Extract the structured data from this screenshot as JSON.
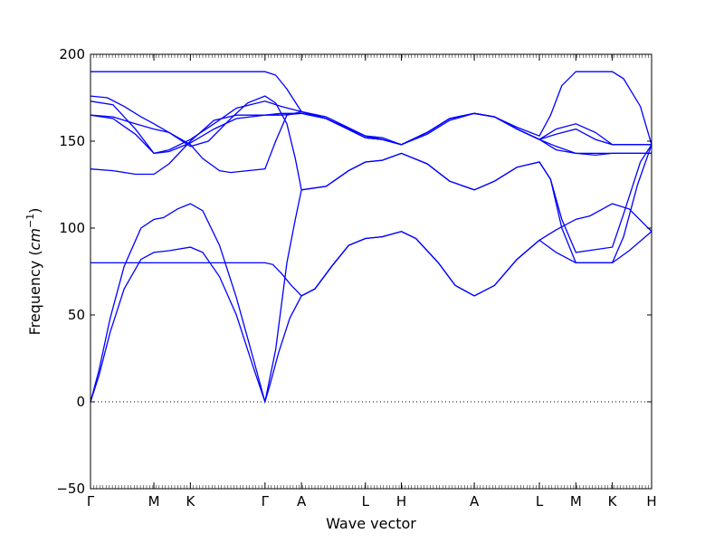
{
  "chart_data": {
    "type": "line",
    "xlabel": "Wave vector",
    "ylabel": "Frequency",
    "ylabel_unit": "cm",
    "ylabel_unit_exp": "−1",
    "ylim": [
      -50,
      200
    ],
    "yticks": [
      -50,
      0,
      50,
      100,
      150,
      200
    ],
    "xlim": [
      0,
      100
    ],
    "zero_line": "dotted",
    "line_color": "#0000ff",
    "kpoints": [
      {
        "label": "Γ",
        "x": 0
      },
      {
        "label": "M",
        "x": 11.3
      },
      {
        "label": "K",
        "x": 17.8
      },
      {
        "label": "Γ",
        "x": 31.1
      },
      {
        "label": "A",
        "x": 37.6
      },
      {
        "label": "L",
        "x": 49.0
      },
      {
        "label": "H",
        "x": 55.4
      },
      {
        "label": "A",
        "x": 68.4
      },
      {
        "label": "L",
        "x": 80.0
      },
      {
        "label": "M",
        "x": 86.5
      },
      {
        "label": "K",
        "x": 93.0
      },
      {
        "label": "H",
        "x": 100
      }
    ],
    "series": [
      {
        "values": [
          [
            0,
            190
          ],
          [
            31.1,
            190
          ],
          [
            33,
            188
          ],
          [
            35,
            180
          ],
          [
            37.6,
            167
          ],
          [
            42,
            163
          ],
          [
            49,
            153
          ],
          [
            52,
            152
          ],
          [
            55.4,
            148
          ],
          [
            60,
            154
          ],
          [
            64,
            162
          ],
          [
            68.4,
            166
          ],
          [
            72,
            164
          ],
          [
            76,
            158
          ],
          [
            80,
            153
          ],
          [
            82,
            165
          ],
          [
            84,
            182
          ],
          [
            86.5,
            190
          ],
          [
            93,
            190
          ],
          [
            95,
            186
          ],
          [
            98,
            170
          ],
          [
            100,
            148
          ]
        ]
      },
      {
        "values": [
          [
            0,
            176
          ],
          [
            3,
            175
          ],
          [
            6,
            170
          ],
          [
            9,
            164
          ],
          [
            11.3,
            160
          ],
          [
            14,
            155
          ],
          [
            17.8,
            147
          ],
          [
            21,
            150
          ],
          [
            25,
            163
          ],
          [
            28,
            172
          ],
          [
            31.1,
            176
          ],
          [
            33,
            172
          ],
          [
            35,
            160
          ],
          [
            36.5,
            140
          ],
          [
            37.6,
            122
          ],
          [
            42,
            124
          ],
          [
            46,
            133
          ],
          [
            49,
            138
          ],
          [
            52,
            139
          ],
          [
            55.4,
            143
          ],
          [
            60,
            137
          ],
          [
            64,
            127
          ],
          [
            68.4,
            122
          ],
          [
            72,
            127
          ],
          [
            76,
            135
          ],
          [
            80,
            138
          ],
          [
            82,
            128
          ],
          [
            84,
            105
          ],
          [
            86.5,
            86
          ],
          [
            93,
            89
          ],
          [
            95,
            108
          ],
          [
            98,
            138
          ],
          [
            100,
            148
          ]
        ]
      },
      {
        "values": [
          [
            0,
            173
          ],
          [
            4,
            171
          ],
          [
            8,
            157
          ],
          [
            11.3,
            143
          ],
          [
            14,
            145
          ],
          [
            17.8,
            151
          ],
          [
            22,
            160
          ],
          [
            26,
            169
          ],
          [
            31.1,
            173
          ],
          [
            34,
            170
          ],
          [
            37.6,
            167
          ],
          [
            42,
            164
          ],
          [
            49,
            153
          ],
          [
            52,
            151
          ],
          [
            55.4,
            148
          ],
          [
            60,
            155
          ],
          [
            64,
            163
          ],
          [
            68.4,
            166
          ],
          [
            72,
            164
          ],
          [
            76,
            157
          ],
          [
            80,
            151
          ],
          [
            83,
            157
          ],
          [
            86.5,
            160
          ],
          [
            90,
            155
          ],
          [
            93,
            148
          ],
          [
            100,
            148
          ]
        ]
      },
      {
        "values": [
          [
            0,
            165
          ],
          [
            4,
            163
          ],
          [
            8,
            154
          ],
          [
            11.3,
            143
          ],
          [
            14,
            144
          ],
          [
            17.8,
            149
          ],
          [
            22,
            157
          ],
          [
            26,
            163
          ],
          [
            31.1,
            165
          ],
          [
            34,
            165
          ],
          [
            37.6,
            166
          ],
          [
            42,
            163
          ],
          [
            49,
            152
          ],
          [
            52,
            151
          ],
          [
            55.4,
            148
          ],
          [
            60,
            155
          ],
          [
            64,
            163
          ],
          [
            68.4,
            166
          ],
          [
            72,
            164
          ],
          [
            76,
            157
          ],
          [
            80,
            151
          ],
          [
            83,
            154
          ],
          [
            86.5,
            157
          ],
          [
            90,
            151
          ],
          [
            93,
            148
          ],
          [
            100,
            148
          ]
        ]
      },
      {
        "values": [
          [
            0,
            165
          ],
          [
            4,
            164
          ],
          [
            8,
            160
          ],
          [
            11.3,
            157
          ],
          [
            14,
            155
          ],
          [
            17.8,
            148
          ],
          [
            20,
            140
          ],
          [
            23,
            133
          ],
          [
            25,
            132
          ],
          [
            28,
            133
          ],
          [
            31.1,
            134
          ],
          [
            33,
            150
          ],
          [
            35,
            165
          ],
          [
            37.6,
            167
          ],
          [
            42,
            163
          ],
          [
            49,
            152
          ],
          [
            52,
            151
          ],
          [
            55.4,
            148
          ],
          [
            60,
            155
          ],
          [
            64,
            163
          ],
          [
            68.4,
            166
          ],
          [
            72,
            164
          ],
          [
            76,
            157
          ],
          [
            80,
            151
          ],
          [
            83,
            145
          ],
          [
            86.5,
            143
          ],
          [
            90,
            142
          ],
          [
            93,
            143
          ],
          [
            100,
            143
          ]
        ]
      },
      {
        "values": [
          [
            0,
            134
          ],
          [
            4,
            133
          ],
          [
            8,
            131
          ],
          [
            11.3,
            131
          ],
          [
            14,
            137
          ],
          [
            17.8,
            150
          ],
          [
            22,
            162
          ],
          [
            26,
            165
          ],
          [
            31.1,
            165
          ],
          [
            34,
            166
          ],
          [
            37.6,
            166
          ],
          [
            42,
            163
          ],
          [
            49,
            152
          ],
          [
            52,
            151
          ],
          [
            55.4,
            148
          ],
          [
            60,
            155
          ],
          [
            64,
            163
          ],
          [
            68.4,
            166
          ],
          [
            72,
            164
          ],
          [
            76,
            157
          ],
          [
            80,
            151
          ],
          [
            83,
            147
          ],
          [
            86.5,
            143
          ],
          [
            93,
            143
          ],
          [
            100,
            143
          ]
        ]
      },
      {
        "values": [
          [
            0,
            0
          ],
          [
            1.5,
            18
          ],
          [
            3.5,
            48
          ],
          [
            6,
            78
          ],
          [
            9,
            100
          ],
          [
            11.3,
            105
          ],
          [
            13,
            106
          ],
          [
            15.5,
            111
          ],
          [
            17.8,
            114
          ],
          [
            20,
            110
          ],
          [
            23,
            90
          ],
          [
            26,
            60
          ],
          [
            29,
            25
          ],
          [
            31.1,
            0
          ],
          [
            33,
            30
          ],
          [
            35,
            80
          ],
          [
            36.5,
            105
          ],
          [
            37.6,
            122
          ],
          [
            42,
            124
          ],
          [
            46,
            133
          ],
          [
            49,
            138
          ],
          [
            52,
            139
          ],
          [
            55.4,
            143
          ],
          [
            60,
            137
          ],
          [
            64,
            127
          ],
          [
            68.4,
            122
          ],
          [
            72,
            127
          ],
          [
            76,
            135
          ],
          [
            80,
            138
          ],
          [
            82,
            128
          ],
          [
            84,
            100
          ],
          [
            86.5,
            80
          ],
          [
            93,
            80
          ],
          [
            95,
            95
          ],
          [
            97.5,
            125
          ],
          [
            100,
            148
          ]
        ]
      },
      {
        "values": [
          [
            0,
            0
          ],
          [
            1.5,
            15
          ],
          [
            3.5,
            40
          ],
          [
            6,
            65
          ],
          [
            9,
            82
          ],
          [
            11.3,
            86
          ],
          [
            14,
            87
          ],
          [
            17.8,
            89
          ],
          [
            20,
            86
          ],
          [
            23,
            72
          ],
          [
            26,
            50
          ],
          [
            29,
            20
          ],
          [
            31.1,
            0
          ],
          [
            32,
            10
          ],
          [
            33.5,
            28
          ],
          [
            35.5,
            48
          ],
          [
            37.6,
            61
          ],
          [
            40,
            65
          ],
          [
            43,
            78
          ],
          [
            46,
            90
          ],
          [
            49,
            94
          ],
          [
            52,
            95
          ],
          [
            55.4,
            98
          ],
          [
            58,
            94
          ],
          [
            62,
            80
          ],
          [
            65,
            67
          ],
          [
            68.4,
            61
          ],
          [
            72,
            67
          ],
          [
            76,
            82
          ],
          [
            80,
            93
          ],
          [
            83,
            99
          ],
          [
            86.5,
            105
          ],
          [
            89,
            107
          ],
          [
            93,
            114
          ],
          [
            96,
            111
          ],
          [
            100,
            98
          ]
        ]
      },
      {
        "values": [
          [
            0,
            80
          ],
          [
            31.1,
            80
          ],
          [
            32.5,
            79
          ],
          [
            34,
            74
          ],
          [
            35.8,
            67
          ],
          [
            37.6,
            61
          ],
          [
            40,
            65
          ],
          [
            43,
            78
          ],
          [
            46,
            90
          ],
          [
            49,
            94
          ],
          [
            52,
            95
          ],
          [
            55.4,
            98
          ],
          [
            58,
            94
          ],
          [
            62,
            80
          ],
          [
            65,
            67
          ],
          [
            68.4,
            61
          ],
          [
            72,
            67
          ],
          [
            76,
            82
          ],
          [
            80,
            93
          ],
          [
            83,
            86
          ],
          [
            86.5,
            80
          ],
          [
            93,
            80
          ],
          [
            96,
            87
          ],
          [
            100,
            98
          ]
        ]
      }
    ]
  }
}
